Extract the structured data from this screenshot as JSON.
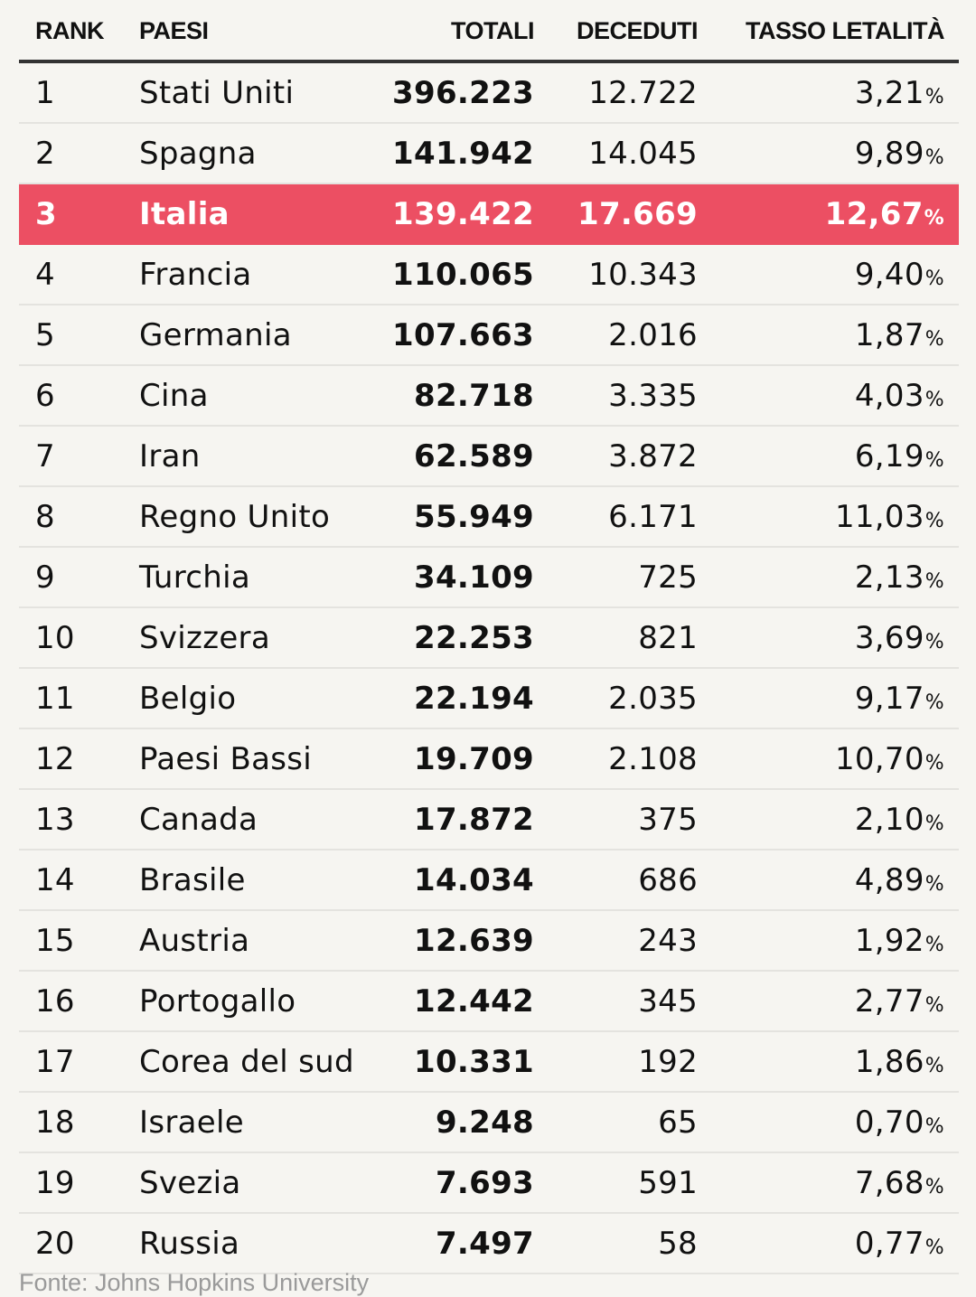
{
  "chart_data": {
    "type": "table",
    "columns": [
      "RANK",
      "PAESI",
      "TOTALI",
      "DECEDUTI",
      "TASSO LETALITÀ"
    ],
    "highlight_color": "#ec4f63",
    "highlight_rank": "3",
    "rows": [
      {
        "rank": "1",
        "country": "Stati Uniti",
        "total": "396.223",
        "deaths": "12.722",
        "rate": "3,21"
      },
      {
        "rank": "2",
        "country": "Spagna",
        "total": "141.942",
        "deaths": "14.045",
        "rate": "9,89"
      },
      {
        "rank": "3",
        "country": "Italia",
        "total": "139.422",
        "deaths": "17.669",
        "rate": "12,67"
      },
      {
        "rank": "4",
        "country": "Francia",
        "total": "110.065",
        "deaths": "10.343",
        "rate": "9,40"
      },
      {
        "rank": "5",
        "country": "Germania",
        "total": "107.663",
        "deaths": "2.016",
        "rate": "1,87"
      },
      {
        "rank": "6",
        "country": "Cina",
        "total": "82.718",
        "deaths": "3.335",
        "rate": "4,03"
      },
      {
        "rank": "7",
        "country": "Iran",
        "total": "62.589",
        "deaths": "3.872",
        "rate": "6,19"
      },
      {
        "rank": "8",
        "country": "Regno Unito",
        "total": "55.949",
        "deaths": "6.171",
        "rate": "11,03"
      },
      {
        "rank": "9",
        "country": "Turchia",
        "total": "34.109",
        "deaths": "725",
        "rate": "2,13"
      },
      {
        "rank": "10",
        "country": "Svizzera",
        "total": "22.253",
        "deaths": "821",
        "rate": "3,69"
      },
      {
        "rank": "11",
        "country": "Belgio",
        "total": "22.194",
        "deaths": "2.035",
        "rate": "9,17"
      },
      {
        "rank": "12",
        "country": "Paesi Bassi",
        "total": "19.709",
        "deaths": "2.108",
        "rate": "10,70"
      },
      {
        "rank": "13",
        "country": "Canada",
        "total": "17.872",
        "deaths": "375",
        "rate": "2,10"
      },
      {
        "rank": "14",
        "country": "Brasile",
        "total": "14.034",
        "deaths": "686",
        "rate": "4,89"
      },
      {
        "rank": "15",
        "country": "Austria",
        "total": "12.639",
        "deaths": "243",
        "rate": "1,92"
      },
      {
        "rank": "16",
        "country": "Portogallo",
        "total": "12.442",
        "deaths": "345",
        "rate": "2,77"
      },
      {
        "rank": "17",
        "country": "Corea del sud",
        "total": "10.331",
        "deaths": "192",
        "rate": "1,86"
      },
      {
        "rank": "18",
        "country": "Israele",
        "total": "9.248",
        "deaths": "65",
        "rate": "0,70"
      },
      {
        "rank": "19",
        "country": "Svezia",
        "total": "7.693",
        "deaths": "591",
        "rate": "7,68"
      },
      {
        "rank": "20",
        "country": "Russia",
        "total": "7.497",
        "deaths": "58",
        "rate": "0,77"
      }
    ],
    "percent_symbol": "%",
    "source": "Fonte: Johns Hopkins University"
  }
}
